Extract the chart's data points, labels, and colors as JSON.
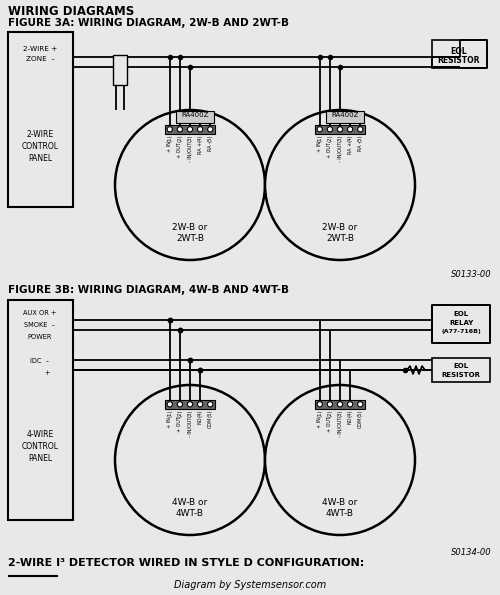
{
  "bg_color": "#e8e8e8",
  "title1": "WIRING DIAGRAMS",
  "title2": "FIGURE 3A: WIRING DIAGRAM, 2W-B AND 2WT-B",
  "title3": "FIGURE 3B: WIRING DIAGRAM, 4W-B AND 4WT-B",
  "footer_bold": "2-WIRE I³ DETECTOR WIRED IN STYLE D CONFIGURATION:",
  "footer_credit": "Diagram by Systemsensor.com",
  "s0133": "S0133-00",
  "s0134": "S0134-00",
  "term_main": [
    "(1)",
    "(2)",
    "(3)",
    "(4)",
    "(5)"
  ],
  "term_sub_2w": [
    "+ IN",
    "+ OUT",
    "- IN/OUT",
    "RA +",
    "RA -"
  ],
  "term_sub_4w": [
    "+ IN",
    "+ OUT",
    "- IN/OUT",
    "NO",
    "COM"
  ],
  "det2w": [
    "2W-B or",
    "2WT-B"
  ],
  "det4w": [
    "4W-B or",
    "4WT-B"
  ]
}
